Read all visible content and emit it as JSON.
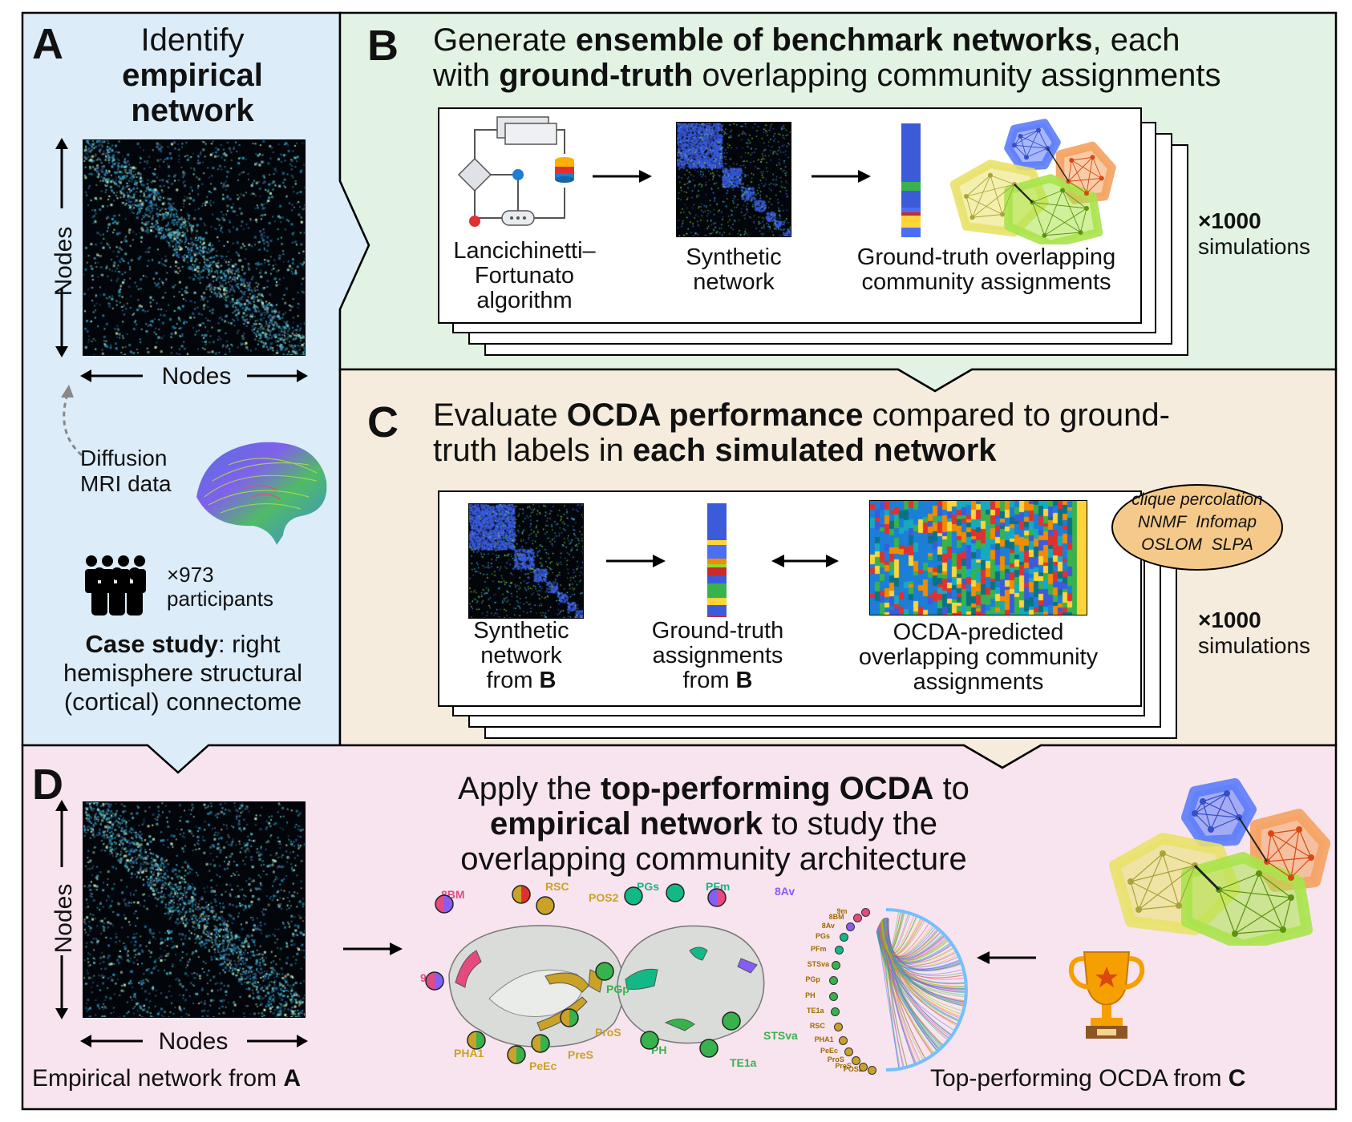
{
  "panel_a": {
    "letter": "A",
    "title_line1": "Identify",
    "title_line2": "empirical",
    "title_line3": "network",
    "axis_y": "Nodes",
    "axis_x": "Nodes",
    "diffusion_line1": "Diffusion",
    "diffusion_line2": "MRI data",
    "participants_count": "×973",
    "participants_label": "participants",
    "case_bold": "Case study",
    "case_rest": ": right",
    "case_line2": "hemisphere structural",
    "case_line3": "(cortical) connectome"
  },
  "panel_b": {
    "letter": "B",
    "title_p1": "Generate ",
    "title_b1": "ensemble of benchmark networks",
    "title_p2": ", each",
    "title_p3": "with ",
    "title_b2": "ground-truth",
    "title_p4": " overlapping community assignments",
    "step1_line1": "Lancichinetti–",
    "step1_line2": "Fortunato",
    "step1_line3": "algorithm",
    "step2_line1": "Synthetic",
    "step2_line2": "network",
    "step3_line1": "Ground-truth overlapping",
    "step3_line2": "community assignments",
    "sim_count": "×1000",
    "sim_label": "simulations"
  },
  "panel_c": {
    "letter": "C",
    "title_p1": "Evaluate ",
    "title_b1": "OCDA performance",
    "title_p2": " compared to ground-",
    "title_p3": "truth labels in ",
    "title_b2": "each simulated network",
    "step1_line1": "Synthetic",
    "step1_line2": "network",
    "step1_line3a": "from ",
    "step1_line3b": "B",
    "step2_line1": "Ground-truth",
    "step2_line2": "assignments",
    "step2_line3a": "from ",
    "step2_line3b": "B",
    "step3_line1": "OCDA-predicted",
    "step3_line2": "overlapping community",
    "step3_line3": "assignments",
    "algorithms_line1": "clique percolation",
    "algorithms_line2a": "NNMF",
    "algorithms_line2b": "Infomap",
    "algorithms_line3a": "OSLOM",
    "algorithms_line3b": "SLPA",
    "sim_count": "×1000",
    "sim_label": "simulations"
  },
  "panel_d": {
    "letter": "D",
    "title_p1": "Apply the ",
    "title_b1": "top-performing OCDA",
    "title_p2": " to",
    "title_b2": "empirical network",
    "title_p3": " to study the",
    "title_p4": "overlapping community architecture",
    "axis_y": "Nodes",
    "axis_x": "Nodes",
    "empirical_caption": "Empirical network from ",
    "empirical_caption_b": "A",
    "top_caption": "Top-performing OCDA from ",
    "top_caption_b": "C",
    "brain_regions_medial": [
      "8BM",
      "RSC",
      "POS2",
      "9m",
      "PHA1",
      "PeEc",
      "PreS",
      "ProS"
    ],
    "brain_regions_lateral": [
      "PGs",
      "PFm",
      "8Av",
      "PGp",
      "PH",
      "TE1a",
      "STSva"
    ],
    "chord_labels": [
      "POS2",
      "PreS",
      "ProS",
      "PeEc",
      "PHA1",
      "RSC",
      "TE1a",
      "PH",
      "PGp",
      "STSva",
      "PFm",
      "PGs",
      "8Av",
      "8BM",
      "9m"
    ]
  },
  "colors": {
    "panel_a_bg": "#dcecf8",
    "panel_b_bg": "#e2f3e4",
    "panel_c_bg": "#f6ecdd",
    "panel_d_bg": "#f8e4ee",
    "algorithms_oval": "#f4c98a"
  }
}
